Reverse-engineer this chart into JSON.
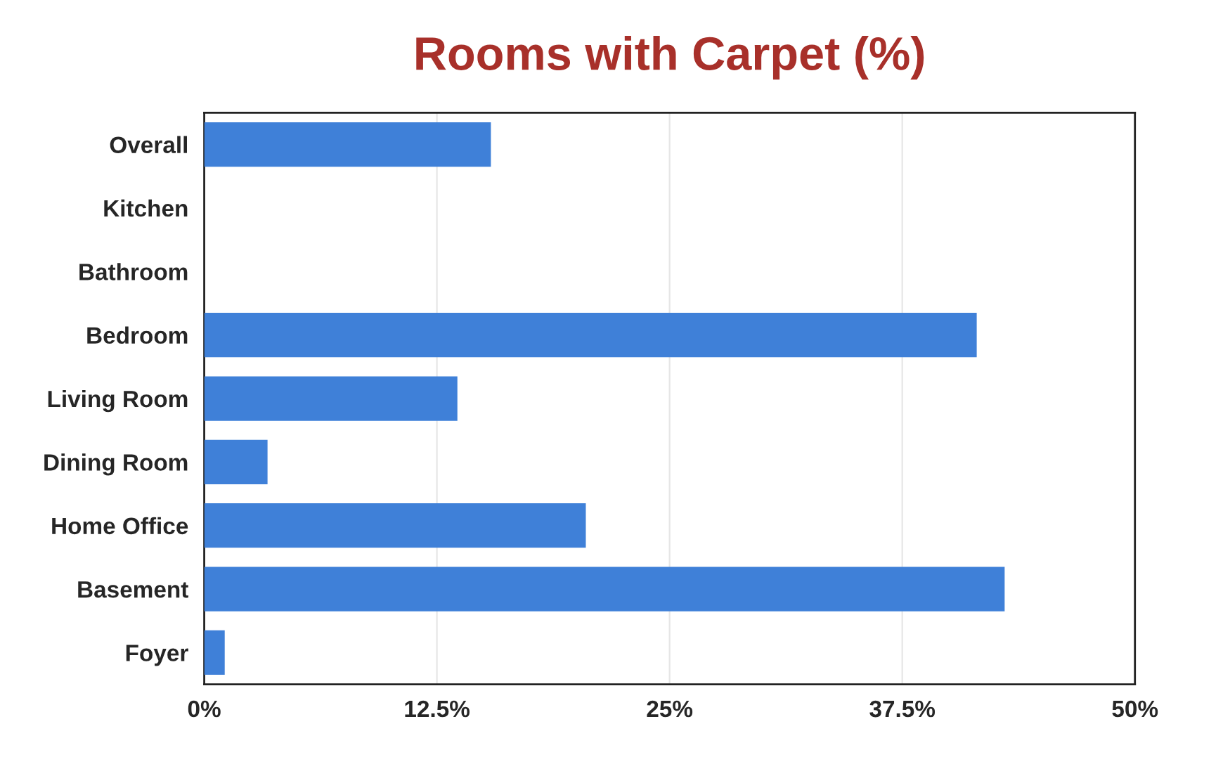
{
  "chart_data": {
    "type": "bar",
    "orientation": "horizontal",
    "title": "Rooms with Carpet (%)",
    "categories": [
      "Overall",
      "Kitchen",
      "Bathroom",
      "Bedroom",
      "Living Room",
      "Dining Room",
      "Home Office",
      "Basement",
      "Foyer"
    ],
    "values": [
      15.4,
      0,
      0,
      41.5,
      13.6,
      3.4,
      20.5,
      43.0,
      1.1
    ],
    "color": "#3f80d8",
    "xlim": [
      0,
      50
    ],
    "xticks": [
      {
        "value": 0,
        "label": "0%"
      },
      {
        "value": 12.5,
        "label": "12.5%"
      },
      {
        "value": 25,
        "label": "25%"
      },
      {
        "value": 37.5,
        "label": "37.5%"
      },
      {
        "value": 50,
        "label": "50%"
      }
    ],
    "grid": "x"
  }
}
